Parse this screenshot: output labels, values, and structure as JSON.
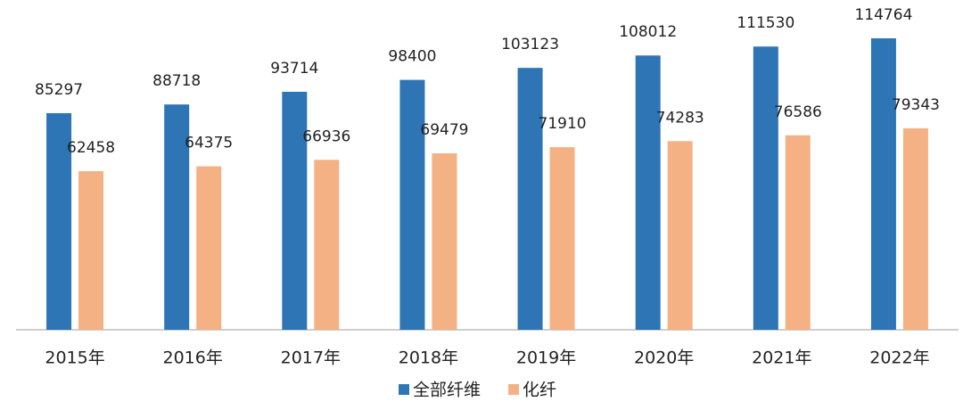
{
  "chart_data": {
    "type": "bar",
    "categories": [
      "2015年",
      "2016年",
      "2017年",
      "2018年",
      "2019年",
      "2020年",
      "2021年",
      "2022年"
    ],
    "series": [
      {
        "name": "全部纤维",
        "color": "#2e75b6",
        "values": [
          85297,
          88718,
          93714,
          98400,
          103123,
          108012,
          111530,
          114764
        ]
      },
      {
        "name": "化纤",
        "color": "#f4b183",
        "values": [
          62458,
          64375,
          66936,
          69479,
          71910,
          74283,
          76586,
          79343
        ]
      }
    ]
  }
}
